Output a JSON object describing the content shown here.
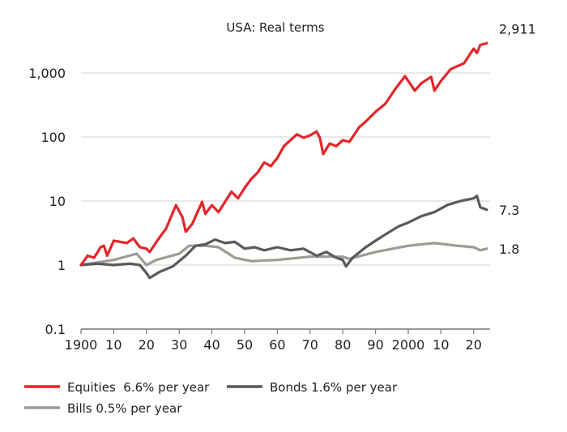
{
  "chart_data": {
    "type": "line",
    "title": "USA: Real terms",
    "xlabel": "",
    "ylabel": "",
    "yscale": "log",
    "ylim": [
      0.1,
      3000
    ],
    "xlim": [
      1900,
      2025
    ],
    "grid": true,
    "y_ticks": [
      {
        "value": 0.1,
        "label": "0.1"
      },
      {
        "value": 1,
        "label": "1"
      },
      {
        "value": 10,
        "label": "10"
      },
      {
        "value": 100,
        "label": "100"
      },
      {
        "value": 1000,
        "label": "1,000"
      }
    ],
    "x_ticks": [
      {
        "value": 1900,
        "label": "1900"
      },
      {
        "value": 1910,
        "label": "10"
      },
      {
        "value": 1920,
        "label": "20"
      },
      {
        "value": 1930,
        "label": "30"
      },
      {
        "value": 1940,
        "label": "40"
      },
      {
        "value": 1950,
        "label": "50"
      },
      {
        "value": 1960,
        "label": "60"
      },
      {
        "value": 1970,
        "label": "70"
      },
      {
        "value": 1980,
        "label": "80"
      },
      {
        "value": 1990,
        "label": "90"
      },
      {
        "value": 2000,
        "label": "2000"
      },
      {
        "value": 2010,
        "label": "10"
      },
      {
        "value": 2020,
        "label": "20"
      }
    ],
    "legend_position": "bottom",
    "series": [
      {
        "name": "Equities",
        "legend_label": "Equities  6.6% per year",
        "color": "#e3262a",
        "end_label": "2,911",
        "x": [
          1900,
          1902,
          1904,
          1906,
          1907,
          1908,
          1910,
          1912,
          1914,
          1916,
          1918,
          1920,
          1921,
          1924,
          1926,
          1929,
          1931,
          1932,
          1934,
          1937,
          1938,
          1940,
          1942,
          1946,
          1948,
          1950,
          1952,
          1954,
          1956,
          1958,
          1960,
          1962,
          1964,
          1966,
          1968,
          1970,
          1972,
          1973,
          1974,
          1976,
          1978,
          1980,
          1982,
          1985,
          1987,
          1990,
          1993,
          1996,
          1999,
          2002,
          2004,
          2007,
          2008,
          2010,
          2013,
          2017,
          2020,
          2021,
          2022,
          2024
        ],
        "values": [
          1.0,
          1.4,
          1.3,
          1.9,
          2.0,
          1.4,
          2.4,
          2.3,
          2.2,
          2.6,
          1.9,
          1.8,
          1.6,
          2.7,
          3.7,
          8.6,
          5.6,
          3.3,
          4.4,
          9.7,
          6.3,
          8.6,
          6.7,
          14,
          11,
          16,
          22,
          28,
          40,
          35,
          47,
          72,
          89,
          110,
          97,
          106,
          122,
          97,
          54,
          79,
          72,
          89,
          84,
          142,
          174,
          247,
          330,
          557,
          890,
          530,
          690,
          870,
          530,
          750,
          1150,
          1410,
          2400,
          2050,
          2730,
          2911
        ]
      },
      {
        "name": "Bonds",
        "legend_label": "Bonds 1.6% per year",
        "color": "#5a5a5a",
        "end_label": "7.3",
        "x": [
          1900,
          1905,
          1910,
          1915,
          1918,
          1920,
          1921,
          1924,
          1928,
          1932,
          1935,
          1938,
          1941,
          1944,
          1947,
          1950,
          1953,
          1956,
          1960,
          1964,
          1968,
          1972,
          1975,
          1978,
          1980,
          1981,
          1983,
          1987,
          1990,
          1993,
          1997,
          2000,
          2004,
          2008,
          2012,
          2016,
          2020,
          2021,
          2022,
          2024
        ],
        "values": [
          1.0,
          1.05,
          1.0,
          1.05,
          1.0,
          0.75,
          0.63,
          0.78,
          0.95,
          1.4,
          2.0,
          2.1,
          2.5,
          2.2,
          2.3,
          1.8,
          1.9,
          1.7,
          1.9,
          1.7,
          1.8,
          1.4,
          1.6,
          1.3,
          1.2,
          0.95,
          1.3,
          1.9,
          2.4,
          3.0,
          4.0,
          4.6,
          5.8,
          6.7,
          8.7,
          10,
          11,
          12,
          8.0,
          7.3
        ]
      },
      {
        "name": "Bills",
        "legend_label": "Bills 0.5% per year",
        "color": "#9c9c94",
        "end_label": "1.8",
        "x": [
          1900,
          1910,
          1917,
          1920,
          1923,
          1930,
          1933,
          1938,
          1942,
          1947,
          1952,
          1960,
          1970,
          1980,
          1982,
          1990,
          2000,
          2008,
          2015,
          2020,
          2022,
          2024
        ],
        "values": [
          1.0,
          1.2,
          1.5,
          1.0,
          1.2,
          1.5,
          2.0,
          2.0,
          1.9,
          1.3,
          1.15,
          1.2,
          1.35,
          1.35,
          1.25,
          1.6,
          2.0,
          2.2,
          2.0,
          1.9,
          1.7,
          1.8
        ]
      }
    ]
  }
}
